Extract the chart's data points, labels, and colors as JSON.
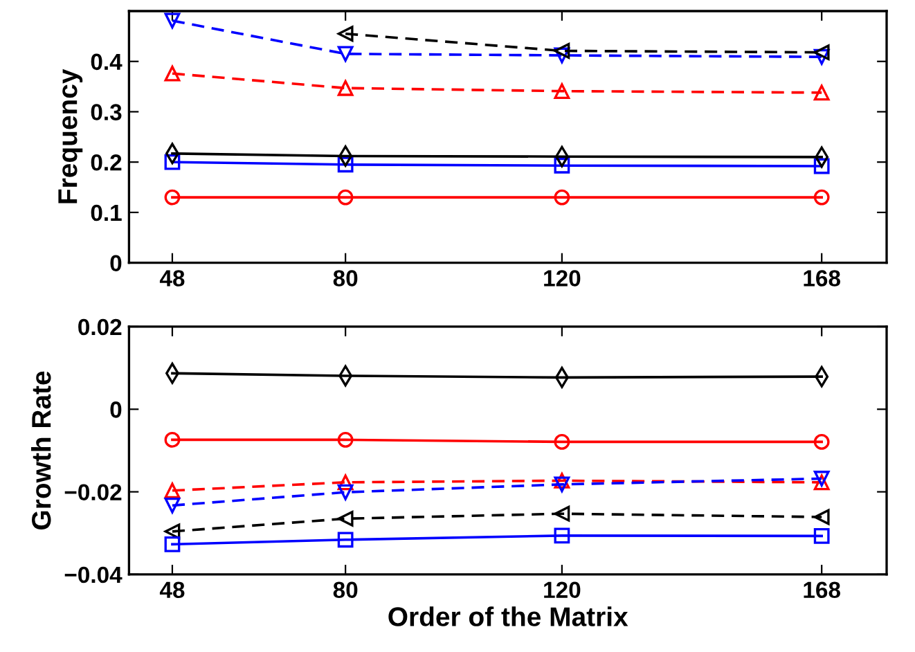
{
  "chart_data": [
    {
      "type": "line",
      "ylabel": "Frequency",
      "x": [
        48,
        80,
        120,
        168
      ],
      "xlim": [
        40,
        180
      ],
      "xticks": [
        48,
        80,
        120,
        168
      ],
      "ylim": [
        0,
        0.5
      ],
      "yticks": [
        0,
        0.1,
        0.2,
        0.3,
        0.4
      ],
      "grid": false,
      "series": [
        {
          "color": "#ff0000",
          "marker": "circle",
          "line_style": "solid",
          "values": [
            0.13,
            0.13,
            0.13,
            0.13
          ]
        },
        {
          "color": "#0000ff",
          "marker": "square",
          "line_style": "solid",
          "values": [
            0.2,
            0.195,
            0.193,
            0.192
          ]
        },
        {
          "color": "#000000",
          "marker": "diamond",
          "line_style": "solid",
          "values": [
            0.217,
            0.212,
            0.211,
            0.21
          ]
        },
        {
          "color": "#ff0000",
          "marker": "triangle-up",
          "line_style": "dashed",
          "values": [
            0.376,
            0.347,
            0.341,
            0.338
          ]
        },
        {
          "color": "#0000ff",
          "marker": "triangle-down",
          "line_style": "dashed",
          "values": [
            0.481,
            0.415,
            0.412,
            0.409
          ]
        },
        {
          "color": "#000000",
          "marker": "triangle-left",
          "line_style": "dashed",
          "values": [
            null,
            0.455,
            0.421,
            0.418
          ]
        }
      ]
    },
    {
      "type": "line",
      "ylabel": "Growth Rate",
      "xlabel": "Order of the Matrix",
      "x": [
        48,
        80,
        120,
        168
      ],
      "xlim": [
        40,
        180
      ],
      "xticks": [
        48,
        80,
        120,
        168
      ],
      "ylim": [
        -0.04,
        0.02
      ],
      "yticks": [
        {
          "value": -0.04,
          "label": "−0.04"
        },
        {
          "value": -0.02,
          "label": "−0.02"
        },
        0,
        0.02
      ],
      "grid": false,
      "series": [
        {
          "color": "#000000",
          "marker": "diamond",
          "line_style": "solid",
          "values": [
            0.0087,
            0.0081,
            0.0077,
            0.0079
          ]
        },
        {
          "color": "#ff0000",
          "marker": "circle",
          "line_style": "solid",
          "values": [
            -0.0074,
            -0.0074,
            -0.0079,
            -0.0079
          ]
        },
        {
          "color": "#ff0000",
          "marker": "triangle-up",
          "line_style": "dashed",
          "values": [
            -0.0197,
            -0.0177,
            -0.0173,
            -0.0177
          ]
        },
        {
          "color": "#0000ff",
          "marker": "triangle-down",
          "line_style": "dashed",
          "values": [
            -0.0233,
            -0.0201,
            -0.0182,
            -0.0168
          ]
        },
        {
          "color": "#000000",
          "marker": "triangle-left",
          "line_style": "dashed",
          "values": [
            -0.0296,
            -0.0265,
            -0.0253,
            -0.0261
          ]
        },
        {
          "color": "#0000ff",
          "marker": "square",
          "line_style": "solid",
          "values": [
            -0.0327,
            -0.0316,
            -0.0306,
            -0.0307
          ]
        }
      ]
    }
  ]
}
